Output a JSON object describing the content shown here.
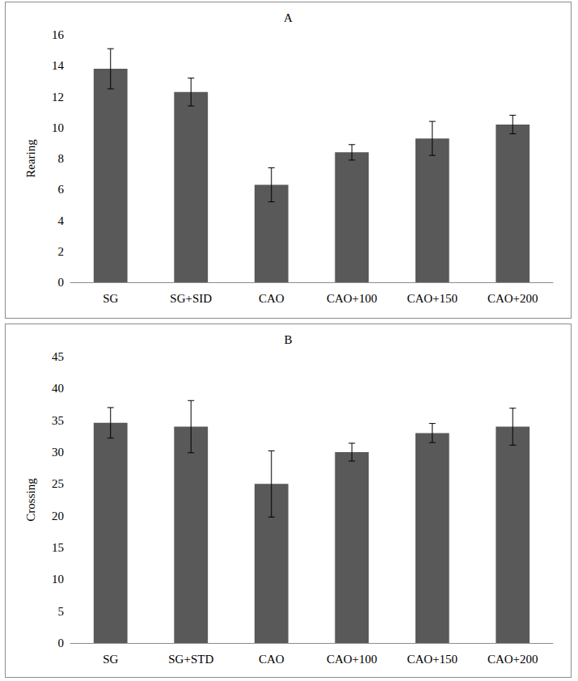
{
  "chart_data": [
    {
      "type": "bar",
      "title": "A",
      "y_label": "Rearing",
      "categories": [
        "SG",
        "SG+SID",
        "CAO",
        "CAO+100",
        "CAO+150",
        "CAO+200"
      ],
      "values": [
        13.8,
        12.3,
        6.3,
        8.4,
        9.3,
        10.2
      ],
      "errors": [
        1.3,
        0.9,
        1.1,
        0.5,
        1.1,
        0.6
      ],
      "color": "#595959",
      "ylim": [
        0,
        16
      ],
      "yticks": [
        0,
        2,
        4,
        6,
        8,
        10,
        12,
        14,
        16
      ],
      "grid": false
    },
    {
      "type": "bar",
      "title": "B",
      "y_label": "Crossing",
      "categories": [
        "SG",
        "SG+STD",
        "CAO",
        "CAO+100",
        "CAO+150",
        "CAO+200"
      ],
      "values": [
        34.6,
        34.0,
        25.0,
        30.0,
        33.0,
        34.0
      ],
      "errors": [
        2.4,
        4.1,
        5.2,
        1.4,
        1.5,
        2.9
      ],
      "color": "#595959",
      "ylim": [
        0,
        45
      ],
      "yticks": [
        0,
        5,
        10,
        15,
        20,
        25,
        30,
        35,
        40,
        45
      ],
      "grid": false
    }
  ]
}
